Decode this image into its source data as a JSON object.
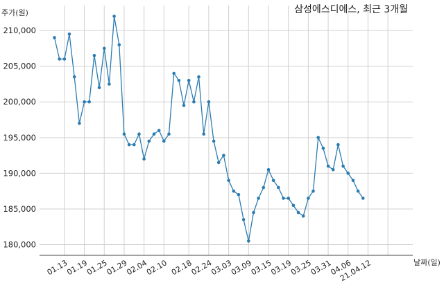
{
  "chart_data": {
    "type": "line",
    "title": "삼성에스디에스, 최근 3개월",
    "xlabel": "날짜(일)",
    "ylabel": "주가(원)",
    "ylim": [
      178500,
      213500
    ],
    "yticks": [
      180000,
      185000,
      190000,
      195000,
      200000,
      205000,
      210000
    ],
    "ytick_labels": [
      "180,000",
      "185,000",
      "190,000",
      "195,000",
      "200,000",
      "205,000",
      "210,000"
    ],
    "x_index_range": [
      -3,
      72
    ],
    "xtick_index": [
      2,
      6,
      10,
      14,
      18,
      22,
      27,
      31,
      35,
      39,
      43,
      47,
      51,
      55,
      59,
      63,
      67
    ],
    "xtick_labels": [
      "01.13",
      "01.19",
      "01.25",
      "01.29",
      "02.04",
      "02.10",
      "02.18",
      "02.24",
      "03.03",
      "03.09",
      "03.15",
      "03.19",
      "03.25",
      "03.31",
      "04.06",
      "21.04.12",
      ""
    ],
    "grid": true,
    "color": "#2b7bb1",
    "series": [
      {
        "values": [
          209000,
          206000,
          206000,
          209500,
          203500,
          197000,
          200000,
          200000,
          206500,
          202000,
          207500,
          202500,
          212000,
          208000,
          195500,
          194000,
          194000,
          195500,
          192000,
          194500,
          195500,
          196000,
          194500,
          195500,
          204000,
          203000,
          199500,
          203000,
          200000,
          203500,
          195500,
          200000,
          194500,
          191500,
          192500,
          189000,
          187500,
          187000,
          183500,
          180500,
          184500,
          186500,
          188000,
          190500,
          189000,
          188000,
          186500,
          186500,
          185500,
          184500,
          184000,
          186500,
          187500,
          195000,
          193500,
          191000,
          190500,
          194000,
          191000,
          190000,
          189000,
          187500,
          186500
        ]
      }
    ]
  }
}
